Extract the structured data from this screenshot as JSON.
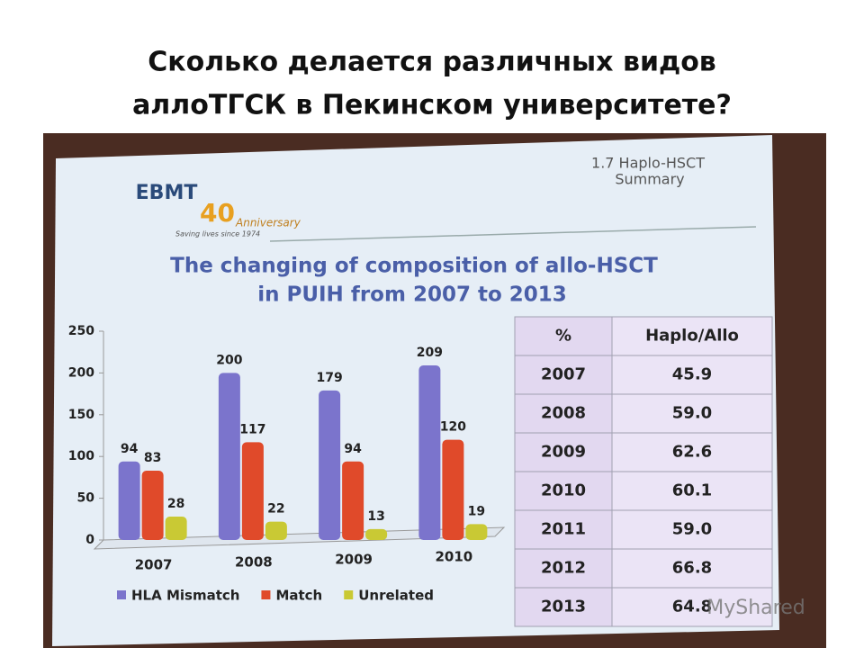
{
  "header": {
    "title_lines": [
      "Сколько делается различных видов",
      "аллоТГСК в Пекинском университете?"
    ]
  },
  "slide": {
    "section_lines": [
      "1.7 Haplo-HSCT",
      "Summary"
    ],
    "logo": "EBMT",
    "anniversary_number": "40",
    "anniversary": "Anniversary",
    "tagline": "Saving lives since 1974",
    "watermark": "MyShared"
  },
  "chart_data": {
    "type": "bar",
    "title_lines": [
      "The changing of composition of allo-HSCT",
      "in PUIH from 2007 to 2013"
    ],
    "categories": [
      "2007",
      "2008",
      "2009",
      "2010"
    ],
    "series": [
      {
        "name": "HLA Mismatch",
        "color": "#7b74cc",
        "values": [
          94,
          200,
          179,
          209
        ]
      },
      {
        "name": "Match",
        "color": "#e04a2a",
        "values": [
          83,
          117,
          94,
          120
        ]
      },
      {
        "name": "Unrelated",
        "color": "#c9c934",
        "values": [
          28,
          22,
          13,
          19
        ]
      }
    ],
    "ylim": [
      0,
      250
    ],
    "yticks": [
      0,
      50,
      100,
      150,
      200,
      250
    ],
    "legend": "bottom"
  },
  "table": {
    "header": [
      "%",
      "Haplo/Allo"
    ],
    "rows": [
      [
        "2007",
        "45.9"
      ],
      [
        "2008",
        "59.0"
      ],
      [
        "2009",
        "62.6"
      ],
      [
        "2010",
        "60.1"
      ],
      [
        "2011",
        "59.0"
      ],
      [
        "2012",
        "66.8"
      ],
      [
        "2013",
        "64.8"
      ]
    ]
  }
}
